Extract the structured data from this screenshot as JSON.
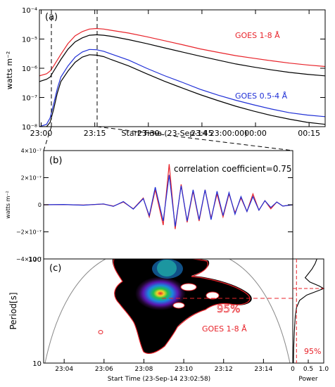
{
  "chart_data": [
    {
      "panel": "a",
      "type": "line",
      "panel_label": "(a)",
      "ylabel": "watts m⁻²",
      "xlabel": "Start Time (23-Sep-14 23:00:00)",
      "yscale": "log",
      "ylim": [
        1e-08,
        0.0001
      ],
      "xlim_minutes": [
        0,
        20
      ],
      "x_ticks": [
        {
          "t": 0.5,
          "label": "23:00"
        },
        {
          "t": 15.5,
          "label": "23:15"
        },
        {
          "t": 30.5,
          "label": "23:30"
        },
        {
          "t": 45.5,
          "label": "23:45"
        },
        {
          "t": 60.5,
          "label": "00:00"
        },
        {
          "t": 75.5,
          "label": "00:15"
        }
      ],
      "y_ticks": [
        {
          "v": 1e-08,
          "label": "10⁻⁸"
        },
        {
          "v": 1e-07,
          "label": "10⁻⁷"
        },
        {
          "v": 1e-06,
          "label": "10⁻⁶"
        },
        {
          "v": 1e-05,
          "label": "10⁻⁵"
        },
        {
          "v": 0.0001,
          "label": "10⁻⁴"
        }
      ],
      "time_range_minutes": [
        0,
        80
      ],
      "vlines_minutes": [
        3,
        15.5
      ],
      "series": [
        {
          "name": "GOES 1-8 Å",
          "color": "#e8232a",
          "t": [
            0,
            2,
            3,
            4,
            6,
            8,
            10,
            12,
            14,
            16,
            18,
            20,
            25,
            30,
            35,
            40,
            45,
            50,
            55,
            60,
            65,
            70,
            75,
            80
          ],
          "values": [
            5.5e-07,
            6.5e-07,
            8e-07,
            1.2e-06,
            3e-06,
            7e-06,
            1.3e-05,
            1.8e-05,
            2.2e-05,
            2.3e-05,
            2.2e-05,
            2e-05,
            1.6e-05,
            1.2e-05,
            8.8e-06,
            6.4e-06,
            4.6e-06,
            3.5e-06,
            2.7e-06,
            2.2e-06,
            1.8e-06,
            1.5e-06,
            1.3e-06,
            1.15e-06
          ]
        },
        {
          "name": "",
          "color": "#000000",
          "t": [
            0,
            2,
            3,
            4,
            6,
            8,
            10,
            12,
            14,
            16,
            18,
            20,
            25,
            30,
            35,
            40,
            45,
            50,
            55,
            60,
            65,
            70,
            75,
            80
          ],
          "values": [
            3.5e-07,
            4.2e-07,
            5e-07,
            8e-07,
            2e-06,
            4.5e-06,
            8e-06,
            1.1e-05,
            1.35e-05,
            1.4e-05,
            1.35e-05,
            1.25e-05,
            9.5e-06,
            7e-06,
            5e-06,
            3.6e-06,
            2.6e-06,
            1.9e-06,
            1.4e-06,
            1.1e-06,
            8.8e-07,
            7.2e-07,
            6.2e-07,
            5.5e-07
          ]
        },
        {
          "name": "GOES 0.5-4 Å",
          "color": "#1f2fd6",
          "t": [
            0,
            2,
            3,
            4,
            5,
            6,
            8,
            10,
            12,
            14,
            16,
            18,
            20,
            25,
            30,
            35,
            40,
            45,
            50,
            55,
            60,
            65,
            70,
            75,
            80
          ],
          "values": [
            1e-08,
            1.2e-08,
            2e-08,
            6e-08,
            2e-07,
            5e-07,
            1.2e-06,
            2.4e-06,
            3.6e-06,
            4.4e-06,
            4.3e-06,
            3.8e-06,
            3.1e-06,
            1.9e-06,
            1e-06,
            5.6e-07,
            3.3e-07,
            1.9e-07,
            1.2e-07,
            8e-08,
            5.6e-08,
            4e-08,
            3e-08,
            2.5e-08,
            2.2e-08
          ]
        },
        {
          "name": "",
          "color": "#000000",
          "t": [
            0,
            2,
            3,
            4,
            5,
            6,
            8,
            10,
            12,
            14,
            16,
            18,
            20,
            25,
            30,
            35,
            40,
            45,
            50,
            55,
            60,
            65,
            70,
            75,
            80
          ],
          "values": [
            1e-08,
            1e-08,
            1.4e-08,
            4e-08,
            1.4e-07,
            3.5e-07,
            8e-07,
            1.6e-06,
            2.4e-06,
            2.9e-06,
            2.8e-06,
            2.5e-06,
            2e-06,
            1.2e-06,
            6.5e-07,
            3.6e-07,
            2.1e-07,
            1.25e-07,
            7.8e-08,
            5e-08,
            3.4e-08,
            2.4e-08,
            1.8e-08,
            1.4e-08,
            1.2e-08
          ]
        }
      ]
    },
    {
      "panel": "b",
      "type": "line",
      "panel_label": "(b)",
      "ylabel": "watts m⁻²",
      "annotation": "correlation coefficient=0.75",
      "ylim": [
        -4e-07,
        4e-07
      ],
      "y_ticks": [
        {
          "v": 4e-07,
          "label": "4×10⁻⁷"
        },
        {
          "v": 2e-07,
          "label": "2×10⁻⁷"
        },
        {
          "v": 0,
          "label": "0"
        },
        {
          "v": -2e-07,
          "label": "−2×10⁻⁷"
        },
        {
          "v": -4e-07,
          "label": "−4×10⁻⁷"
        }
      ],
      "xlim_minutes": [
        0,
        12.5
      ],
      "series": [
        {
          "name": "",
          "color": "#e8232a",
          "t": [
            0,
            1,
            2,
            3,
            3.5,
            4,
            4.5,
            5,
            5.3,
            5.6,
            6.0,
            6.3,
            6.6,
            6.9,
            7.2,
            7.5,
            7.8,
            8.1,
            8.4,
            8.7,
            9.0,
            9.3,
            9.6,
            9.9,
            10.2,
            10.5,
            10.8,
            11.1,
            11.4,
            11.7,
            12.0,
            12.5
          ],
          "values": [
            0,
            1e-09,
            -2e-09,
            5e-09,
            -1e-08,
            2e-08,
            -3e-08,
            5e-08,
            -9e-08,
            1.1e-07,
            -1.5e-07,
            3e-07,
            -1.8e-07,
            1.5e-07,
            -1.3e-07,
            1e-07,
            -1.2e-07,
            1.1e-07,
            -1e-07,
            8e-08,
            -9e-08,
            8e-08,
            -6e-08,
            5e-08,
            -5e-08,
            8e-08,
            -4e-08,
            3e-08,
            -3e-08,
            2e-08,
            -1e-08,
            0
          ]
        },
        {
          "name": "",
          "color": "#1f2fd6",
          "t": [
            0,
            1,
            2,
            3,
            3.5,
            4,
            4.5,
            5,
            5.3,
            5.6,
            6.0,
            6.3,
            6.6,
            6.9,
            7.2,
            7.5,
            7.8,
            8.1,
            8.4,
            8.7,
            9.0,
            9.3,
            9.6,
            9.9,
            10.2,
            10.5,
            10.8,
            11.1,
            11.4,
            11.7,
            12.0,
            12.5
          ],
          "values": [
            0,
            2e-09,
            -3e-09,
            6e-09,
            -1.2e-08,
            2.4e-08,
            -3.2e-08,
            4.5e-08,
            -8e-08,
            1.3e-07,
            -1.2e-07,
            2.2e-07,
            -1.6e-07,
            1.4e-07,
            -1.2e-07,
            1.1e-07,
            -1.1e-07,
            1.1e-07,
            -1.1e-07,
            1e-07,
            -8e-08,
            9e-08,
            -7e-08,
            6e-08,
            -5e-08,
            6e-08,
            -4e-08,
            3e-08,
            -2e-08,
            2e-08,
            -1e-08,
            0
          ]
        }
      ]
    },
    {
      "panel": "c",
      "type": "heatmap",
      "panel_label": "(c)",
      "ylabel": "Period[s]",
      "xlabel": "Start Time (23-Sep-14 23:02:58)",
      "annotation_series": "GOES 1-8 Å",
      "annotation_conf": "95%",
      "yscale": "log",
      "ylim": [
        10,
        100
      ],
      "y_ticks": [
        {
          "v": 10,
          "label": "10"
        },
        {
          "v": 100,
          "label": "100"
        }
      ],
      "xlim_minutes": [
        0,
        12.5
      ],
      "x_ticks": [
        {
          "t": 1.03,
          "label": "23:04"
        },
        {
          "t": 3.03,
          "label": "23:06"
        },
        {
          "t": 5.03,
          "label": "23:08"
        },
        {
          "t": 7.03,
          "label": "23:10"
        },
        {
          "t": 9.03,
          "label": "23:12"
        },
        {
          "t": 11.03,
          "label": "23:14"
        }
      ],
      "peak": {
        "t": 6.1,
        "period": 52
      },
      "dominant_period_s": 52
    },
    {
      "panel": "c-power",
      "type": "line",
      "xlabel": "Power",
      "annotation_conf": "95%",
      "xlim": [
        0,
        1.0
      ],
      "x_ticks": [
        {
          "v": 0,
          "label": "0"
        },
        {
          "v": 0.5,
          "label": "0.5"
        },
        {
          "v": 1.0,
          "label": "1.0"
        }
      ],
      "ylim": [
        10,
        100
      ],
      "power_profile": {
        "period": [
          10,
          14,
          20,
          28,
          34,
          40,
          45,
          50,
          52,
          55,
          60,
          66,
          72,
          80,
          90,
          100
        ],
        "power": [
          0.02,
          0.03,
          0.05,
          0.08,
          0.12,
          0.22,
          0.45,
          0.85,
          1.0,
          0.85,
          0.55,
          0.4,
          0.5,
          0.62,
          0.72,
          0.78
        ]
      },
      "conf_line_power": 0.12
    }
  ]
}
